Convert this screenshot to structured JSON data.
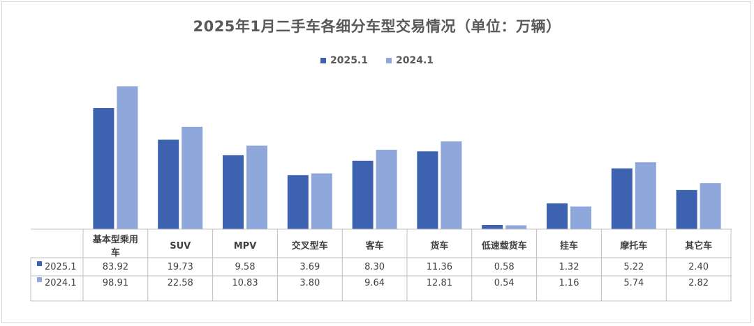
{
  "chart_data": {
    "type": "bar",
    "title": "2025年1月二手车各细分车型交易情况（单位：万辆）",
    "categories": [
      "基本型乘用车",
      "SUV",
      "MPV",
      "交叉型车",
      "客车",
      "货车",
      "低速载货车",
      "挂车",
      "摩托车",
      "其它车"
    ],
    "category_lines": [
      [
        "基本型乘用",
        "车"
      ],
      [
        "SUV"
      ],
      [
        "MPV"
      ],
      [
        "交叉型车"
      ],
      [
        "客车"
      ],
      [
        "货车"
      ],
      [
        "低速载货车"
      ],
      [
        "挂车"
      ],
      [
        "摩托车"
      ],
      [
        "其它车"
      ]
    ],
    "series": [
      {
        "name": "2025.1",
        "color": "#3d63b0",
        "values": [
          83.92,
          19.73,
          9.58,
          3.69,
          8.3,
          11.36,
          0.58,
          1.32,
          5.22,
          2.4
        ],
        "labels": [
          "83.92",
          "19.73",
          "9.58",
          "3.69",
          "8.30",
          "11.36",
          "0.58",
          "1.32",
          "5.22",
          "2.40"
        ]
      },
      {
        "name": "2024.1",
        "color": "#8fa7da",
        "values": [
          98.91,
          22.58,
          10.83,
          3.8,
          9.64,
          12.81,
          0.54,
          1.16,
          5.74,
          2.82
        ],
        "labels": [
          "98.91",
          "22.58",
          "10.83",
          "3.80",
          "9.64",
          "12.81",
          "0.54",
          "1.16",
          "5.74",
          "2.82"
        ]
      }
    ],
    "legend_position": "top",
    "data_table": true,
    "grid": false,
    "axis_scale": "each category scaled independently (bars are not to a common scale)"
  }
}
